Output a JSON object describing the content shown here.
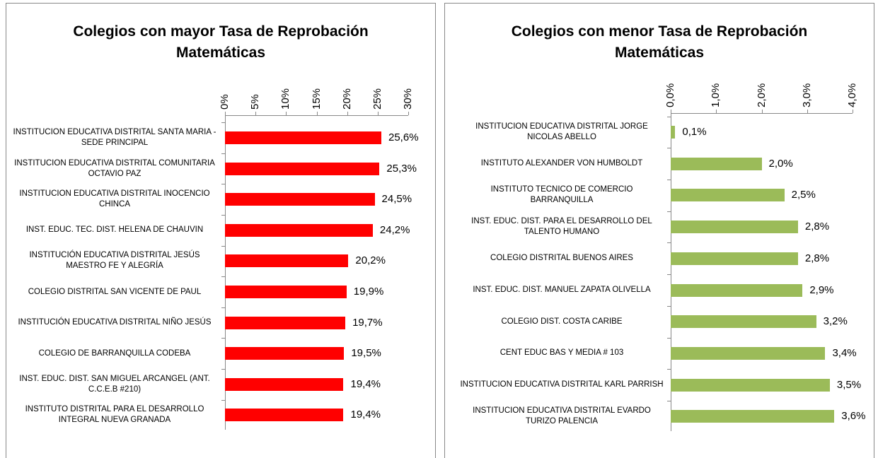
{
  "chart_data": [
    {
      "type": "bar",
      "orientation": "horizontal",
      "title": "Colegios con mayor Tasa de Reprobación Matemáticas",
      "color": "#ff0000",
      "categories": [
        "INSTITUCION EDUCATIVA DISTRITAL SANTA MARIA - SEDE PRINCIPAL",
        "INSTITUCION EDUCATIVA DISTRITAL COMUNITARIA OCTAVIO PAZ",
        "INSTITUCION EDUCATIVA DISTRITAL INOCENCIO CHINCA",
        "INST. EDUC. TEC. DIST. HELENA DE CHAUVIN",
        "INSTITUCIÓN EDUCATIVA DISTRITAL JESÚS MAESTRO FE Y ALEGRÍA",
        "COLEGIO DISTRITAL SAN VICENTE DE PAUL",
        "INSTITUCIÓN EDUCATIVA DISTRITAL NIÑO JESÚS",
        "COLEGIO DE BARRANQUILLA CODEBA",
        "INST. EDUC. DIST. SAN MIGUEL ARCANGEL (ANT. C.C.E.B #210)",
        "INSTITUTO DISTRITAL PARA EL DESARROLLO INTEGRAL NUEVA GRANADA"
      ],
      "values": [
        25.6,
        25.3,
        24.5,
        24.2,
        20.2,
        19.9,
        19.7,
        19.5,
        19.4,
        19.4
      ],
      "value_labels": [
        "25,6%",
        "25,3%",
        "24,5%",
        "24,2%",
        "20,2%",
        "19,9%",
        "19,7%",
        "19,5%",
        "19,4%",
        "19,4%"
      ],
      "xlim": [
        0,
        30
      ],
      "xticks": [
        {
          "value": 0,
          "label": "0%"
        },
        {
          "value": 5,
          "label": "5%"
        },
        {
          "value": 10,
          "label": "10%"
        },
        {
          "value": 15,
          "label": "15%"
        },
        {
          "value": 20,
          "label": "20%"
        },
        {
          "value": 25,
          "label": "25%"
        },
        {
          "value": 30,
          "label": "30%"
        }
      ]
    },
    {
      "type": "bar",
      "orientation": "horizontal",
      "title": "Colegios con menor Tasa de Reprobación Matemáticas",
      "color": "#9bbb59",
      "categories": [
        "INSTITUCION EDUCATIVA DISTRITAL JORGE NICOLAS ABELLO",
        "INSTITUTO ALEXANDER VON HUMBOLDT",
        "INSTITUTO TECNICO DE COMERCIO BARRANQUILLA",
        "INST. EDUC. DIST. PARA EL DESARROLLO DEL TALENTO HUMANO",
        "COLEGIO DISTRITAL BUENOS AIRES",
        "INST. EDUC. DIST. MANUEL ZAPATA OLIVELLA",
        "COLEGIO DIST. COSTA CARIBE",
        "CENT EDUC BAS Y MEDIA # 103",
        "INSTITUCION EDUCATIVA DISTRITAL KARL PARRISH",
        "INSTITUCION EDUCATIVA DISTRITAL EVARDO TURIZO PALENCIA"
      ],
      "values": [
        0.1,
        2.0,
        2.5,
        2.8,
        2.8,
        2.9,
        3.2,
        3.4,
        3.5,
        3.6
      ],
      "value_labels": [
        "0,1%",
        "2,0%",
        "2,5%",
        "2,8%",
        "2,8%",
        "2,9%",
        "3,2%",
        "3,4%",
        "3,5%",
        "3,6%"
      ],
      "xlim": [
        0,
        4
      ],
      "xticks": [
        {
          "value": 0,
          "label": "0,0%"
        },
        {
          "value": 1,
          "label": "1,0%"
        },
        {
          "value": 2,
          "label": "2,0%"
        },
        {
          "value": 3,
          "label": "3,0%"
        },
        {
          "value": 4,
          "label": "4,0%"
        }
      ]
    }
  ]
}
